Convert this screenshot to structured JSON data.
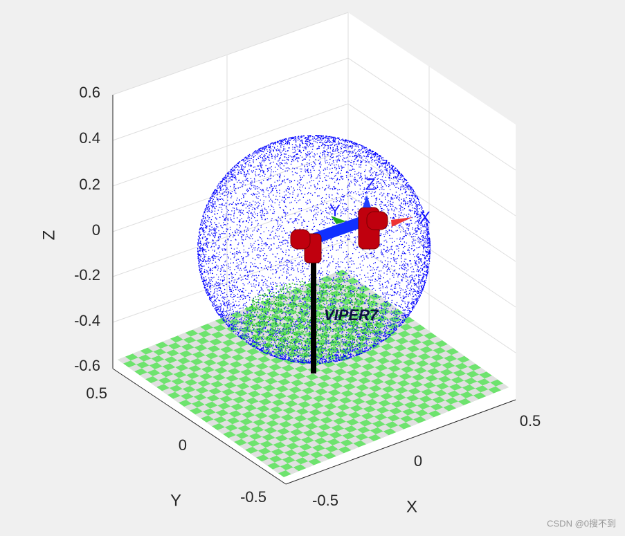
{
  "axes": {
    "z": {
      "label": "Z",
      "ticks": [
        "0.6",
        "0.4",
        "0.2",
        "0",
        "-0.2",
        "-0.4",
        "-0.6"
      ]
    },
    "y": {
      "label": "Y",
      "ticks": [
        "0.5",
        "0",
        "-0.5"
      ]
    },
    "x": {
      "label": "X",
      "ticks": [
        "-0.5",
        "0",
        "0.5"
      ]
    }
  },
  "robot": {
    "name": "VIPER7",
    "frame": {
      "x": "X",
      "y": "Y",
      "z": "Z"
    }
  },
  "watermark": "CSDN @0搜不到"
}
